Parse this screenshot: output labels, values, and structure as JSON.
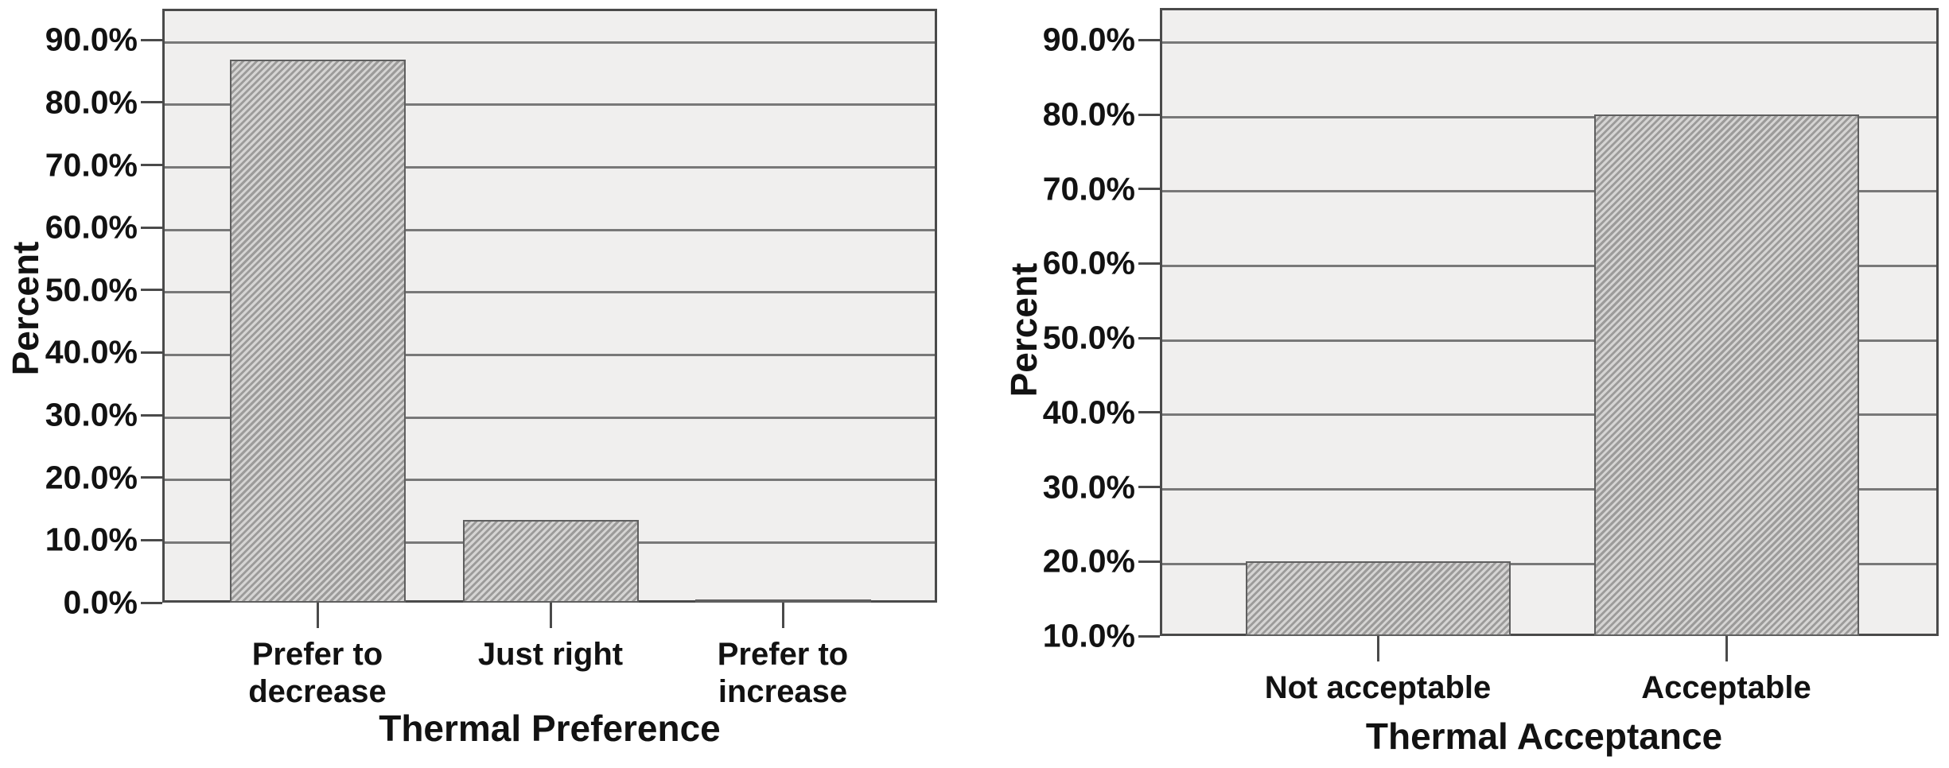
{
  "page": {
    "background": "#ffffff",
    "description": "Two grayscale survey bar charts side by side"
  },
  "style": {
    "plot_background": "#f0efee",
    "grid_color": "#787878",
    "frame_color": "#4a4a4a",
    "text_color": "#121212",
    "bar_stripe_light": "#d5d4d3",
    "bar_stripe_dark": "#9c9b9a",
    "bar_border_color": "#5f5f5f"
  },
  "chart_data": [
    {
      "type": "bar",
      "title": "",
      "xlabel": "Thermal Preference",
      "ylabel": "Percent",
      "categories": [
        "Prefer to\ndecrease",
        "Just right",
        "Prefer to\nincrease"
      ],
      "values": [
        86.8,
        13.2,
        0.5
      ],
      "value_unit": "%",
      "ylim": [
        0,
        95
      ],
      "y_ticks": [
        {
          "value": 0,
          "label": "0.0%"
        },
        {
          "value": 10,
          "label": "10.0%"
        },
        {
          "value": 20,
          "label": "20.0%"
        },
        {
          "value": 30,
          "label": "30.0%"
        },
        {
          "value": 40,
          "label": "40.0%"
        },
        {
          "value": 50,
          "label": "50.0%"
        },
        {
          "value": 60,
          "label": "60.0%"
        },
        {
          "value": 70,
          "label": "70.0%"
        },
        {
          "value": 80,
          "label": "80.0%"
        },
        {
          "value": 90,
          "label": "90.0%"
        }
      ],
      "grid": true,
      "legend": null,
      "bar_fill": "diagonal-hatch"
    },
    {
      "type": "bar",
      "title": "",
      "xlabel": "Thermal Acceptance",
      "ylabel": "Percent",
      "categories": [
        "Not acceptable",
        "Acceptable"
      ],
      "values": [
        20.0,
        80.0
      ],
      "value_unit": "%",
      "ylim": [
        10,
        94.3
      ],
      "baseline_note": "y axis starts at 10%, bars rise from the 10% baseline",
      "y_ticks": [
        {
          "value": 10,
          "label": "10.0%"
        },
        {
          "value": 20,
          "label": "20.0%"
        },
        {
          "value": 30,
          "label": "30.0%"
        },
        {
          "value": 40,
          "label": "40.0%"
        },
        {
          "value": 50,
          "label": "50.0%"
        },
        {
          "value": 60,
          "label": "60.0%"
        },
        {
          "value": 70,
          "label": "70.0%"
        },
        {
          "value": 80,
          "label": "80.0%"
        },
        {
          "value": 90,
          "label": "90.0%"
        }
      ],
      "grid": true,
      "legend": null,
      "bar_fill": "diagonal-hatch"
    }
  ]
}
